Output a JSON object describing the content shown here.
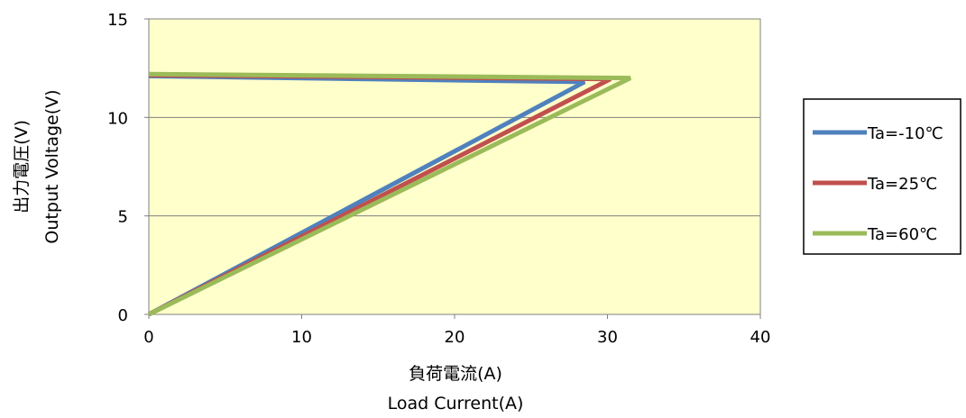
{
  "chart_data": {
    "type": "line",
    "xlabel_jp": "負荷電流(A)",
    "xlabel_en": "Load Current(A)",
    "ylabel_jp": "出力電圧(V)",
    "ylabel_en": "Output  Voltage(V)",
    "xlim": [
      0,
      40
    ],
    "ylim": [
      0,
      15
    ],
    "xticks": [
      "0",
      "10",
      "20",
      "30",
      "40"
    ],
    "yticks": [
      "0",
      "5",
      "10",
      "15"
    ],
    "grid": "horizontal",
    "plot_background": "#ffffcc",
    "legend_placement": "right",
    "series": [
      {
        "name": "Ta=-10℃",
        "color": "#4f81bd",
        "x": [
          0,
          28.5,
          0
        ],
        "y": [
          12.1,
          11.8,
          0
        ]
      },
      {
        "name": "Ta=25℃",
        "color": "#c0504d",
        "x": [
          0,
          30.2,
          0
        ],
        "y": [
          12.15,
          11.95,
          0
        ]
      },
      {
        "name": "Ta=60℃",
        "color": "#9bbb59",
        "x": [
          0,
          31.5,
          0
        ],
        "y": [
          12.2,
          12.0,
          0
        ]
      }
    ]
  }
}
